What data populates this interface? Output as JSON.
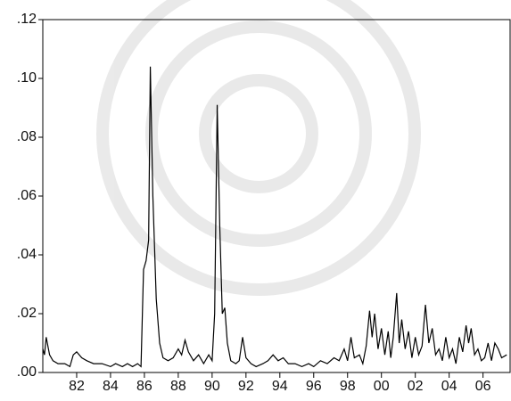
{
  "chart_data": {
    "type": "line",
    "x": [
      1980.0,
      1980.1,
      1980.2,
      1980.4,
      1980.6,
      1980.9,
      1981.3,
      1981.6,
      1981.8,
      1982.0,
      1982.3,
      1982.6,
      1983.0,
      1983.5,
      1984.0,
      1984.3,
      1984.7,
      1985.0,
      1985.3,
      1985.6,
      1985.8,
      1985.95,
      1986.1,
      1986.25,
      1986.35,
      1986.5,
      1986.7,
      1986.9,
      1987.1,
      1987.4,
      1987.7,
      1988.0,
      1988.2,
      1988.4,
      1988.6,
      1988.9,
      1989.2,
      1989.5,
      1989.8,
      1990.0,
      1990.15,
      1990.3,
      1990.45,
      1990.6,
      1990.75,
      1990.9,
      1991.1,
      1991.4,
      1991.6,
      1991.8,
      1992.0,
      1992.3,
      1992.6,
      1993.0,
      1993.3,
      1993.6,
      1993.9,
      1994.2,
      1994.5,
      1994.9,
      1995.3,
      1995.7,
      1996.0,
      1996.4,
      1996.8,
      1997.2,
      1997.5,
      1997.8,
      1998.0,
      1998.2,
      1998.4,
      1998.7,
      1998.9,
      1999.1,
      1999.3,
      1999.45,
      1999.6,
      1999.8,
      2000.0,
      2000.2,
      2000.4,
      2000.55,
      2000.7,
      2000.9,
      2001.05,
      2001.2,
      2001.4,
      2001.6,
      2001.8,
      2002.0,
      2002.2,
      2002.4,
      2002.6,
      2002.8,
      2003.0,
      2003.2,
      2003.4,
      2003.6,
      2003.8,
      2004.0,
      2004.2,
      2004.4,
      2004.6,
      2004.8,
      2005.0,
      2005.15,
      2005.3,
      2005.5,
      2005.7,
      2005.9,
      2006.1,
      2006.3,
      2006.5,
      2006.7,
      2006.9,
      2007.1,
      2007.4
    ],
    "series": [
      {
        "color": "#000000",
        "values": [
          0.008,
          0.006,
          0.012,
          0.006,
          0.004,
          0.003,
          0.003,
          0.002,
          0.006,
          0.007,
          0.005,
          0.004,
          0.003,
          0.003,
          0.002,
          0.003,
          0.002,
          0.003,
          0.002,
          0.003,
          0.002,
          0.035,
          0.038,
          0.045,
          0.104,
          0.06,
          0.025,
          0.01,
          0.005,
          0.004,
          0.005,
          0.008,
          0.006,
          0.011,
          0.007,
          0.004,
          0.006,
          0.003,
          0.006,
          0.004,
          0.02,
          0.091,
          0.05,
          0.02,
          0.022,
          0.01,
          0.004,
          0.003,
          0.004,
          0.012,
          0.005,
          0.003,
          0.002,
          0.003,
          0.004,
          0.006,
          0.004,
          0.005,
          0.003,
          0.003,
          0.002,
          0.003,
          0.002,
          0.004,
          0.003,
          0.005,
          0.004,
          0.008,
          0.004,
          0.012,
          0.005,
          0.006,
          0.003,
          0.009,
          0.021,
          0.012,
          0.02,
          0.008,
          0.015,
          0.006,
          0.014,
          0.005,
          0.012,
          0.027,
          0.01,
          0.018,
          0.008,
          0.014,
          0.005,
          0.012,
          0.006,
          0.009,
          0.023,
          0.01,
          0.015,
          0.006,
          0.008,
          0.004,
          0.012,
          0.005,
          0.008,
          0.003,
          0.012,
          0.007,
          0.016,
          0.01,
          0.015,
          0.006,
          0.008,
          0.004,
          0.005,
          0.01,
          0.004,
          0.01,
          0.008,
          0.005,
          0.006
        ]
      }
    ],
    "xlim": [
      1980.0,
      2007.6
    ],
    "xticks": [
      {
        "value": 1982,
        "label": "82"
      },
      {
        "value": 1984,
        "label": "84"
      },
      {
        "value": 1986,
        "label": "86"
      },
      {
        "value": 1988,
        "label": "88"
      },
      {
        "value": 1990,
        "label": "90"
      },
      {
        "value": 1992,
        "label": "92"
      },
      {
        "value": 1994,
        "label": "94"
      },
      {
        "value": 1996,
        "label": "96"
      },
      {
        "value": 1998,
        "label": "98"
      },
      {
        "value": 2000,
        "label": "00"
      },
      {
        "value": 2002,
        "label": "02"
      },
      {
        "value": 2004,
        "label": "04"
      },
      {
        "value": 2006,
        "label": "06"
      }
    ],
    "ylim": [
      0,
      0.12
    ],
    "yticks": [
      {
        "value": 0,
        "label": ".00"
      },
      {
        "value": 0.02,
        "label": ".02"
      },
      {
        "value": 0.04,
        "label": ".04"
      },
      {
        "value": 0.06,
        "label": ".06"
      },
      {
        "value": 0.08,
        "label": ".08"
      },
      {
        "value": 0.1,
        "label": ".10"
      },
      {
        "value": 0.12,
        "label": ".12"
      }
    ]
  }
}
